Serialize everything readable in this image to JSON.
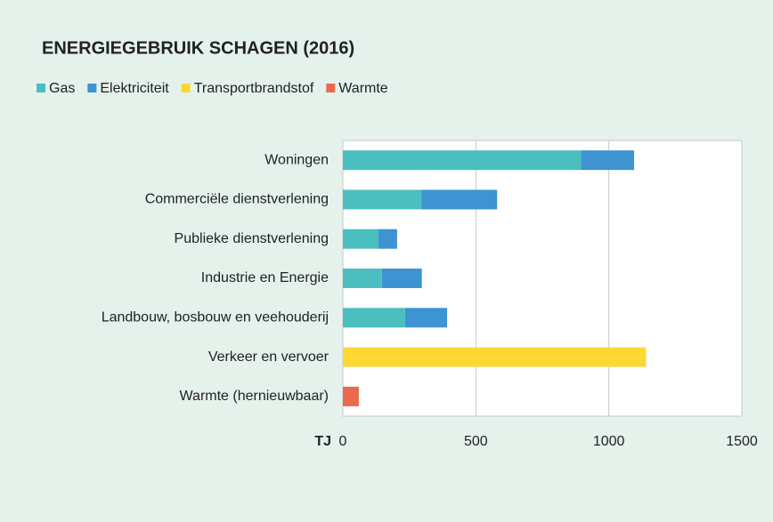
{
  "chart_data": {
    "type": "stacked_barh",
    "title": "ENERGIEGEBRUIK SCHAGEN (2016)",
    "xlabel": "TJ",
    "categories": [
      "Woningen",
      "Commerciële dienstverlening",
      "Publieke dienstverlening",
      "Industrie en Energie",
      "Landbouw, bosbouw en veehouderij",
      "Verkeer en vervoer",
      "Warmte (hernieuwbaar)"
    ],
    "series": [
      {
        "name": "Gas",
        "color": "#4bbfbf",
        "values": [
          895,
          295,
          134,
          147,
          234,
          null,
          null
        ]
      },
      {
        "name": "Elektriciteit",
        "color": "#3d94d1",
        "values": [
          200,
          285,
          70,
          150,
          158,
          null,
          null
        ]
      },
      {
        "name": "Transportbrandstof",
        "color": "#fdd835",
        "values": [
          null,
          null,
          null,
          null,
          null,
          1140,
          null
        ]
      },
      {
        "name": "Warmte",
        "color": "#e96a4e",
        "values": [
          null,
          null,
          null,
          null,
          null,
          null,
          60
        ]
      }
    ],
    "xlim": [
      0,
      1500
    ],
    "xticks": [
      0,
      500,
      1000,
      1500
    ],
    "grid": true
  }
}
